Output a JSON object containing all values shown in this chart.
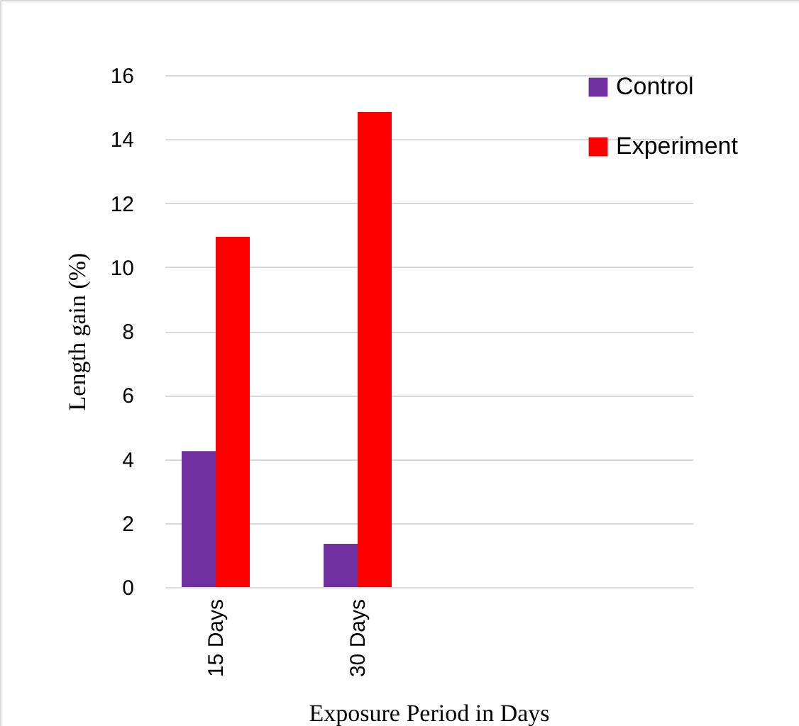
{
  "chart_data": {
    "type": "bar",
    "xlabel": "Exposure Period in Days",
    "ylabel": "Length gain (%)",
    "categories": [
      "15 Days",
      "30 Days",
      null,
      null
    ],
    "series": [
      {
        "name": "Control",
        "color": "#7030a0",
        "values": [
          4.25,
          1.35,
          null,
          null
        ]
      },
      {
        "name": "Experiment",
        "color": "#ff0000",
        "values": [
          10.95,
          14.85,
          null,
          null
        ]
      }
    ],
    "ylim": [
      0,
      16
    ],
    "yticks": [
      0,
      2,
      4,
      6,
      8,
      10,
      12,
      14,
      16
    ],
    "grid": "y",
    "legend": "right"
  }
}
